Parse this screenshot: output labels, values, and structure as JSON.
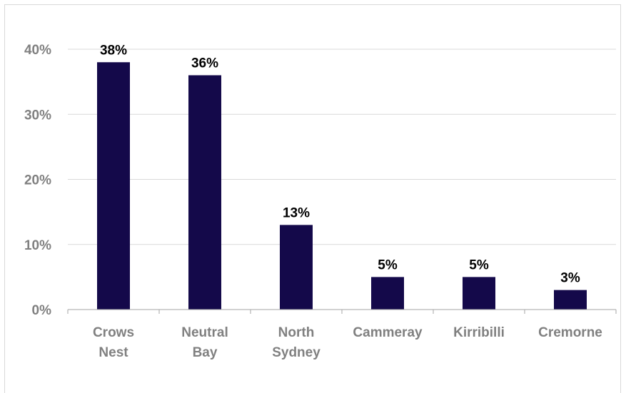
{
  "chart_data": {
    "type": "bar",
    "categories": [
      [
        "Crows",
        "Nest"
      ],
      [
        "Neutral",
        "Bay"
      ],
      [
        "North",
        "Sydney"
      ],
      [
        "Cammeray"
      ],
      [
        "Kirribilli"
      ],
      [
        "Cremorne"
      ]
    ],
    "values": [
      38,
      36,
      13,
      5,
      5,
      3
    ],
    "data_labels": [
      "38%",
      "36%",
      "13%",
      "5%",
      "5%",
      "3%"
    ],
    "y_ticks": [
      0,
      10,
      20,
      30,
      40
    ],
    "y_tick_labels": [
      "0%",
      "10%",
      "20%",
      "30%",
      "40%"
    ],
    "ylim": [
      0,
      40
    ],
    "grid": true,
    "bar_color": "#14094a"
  }
}
